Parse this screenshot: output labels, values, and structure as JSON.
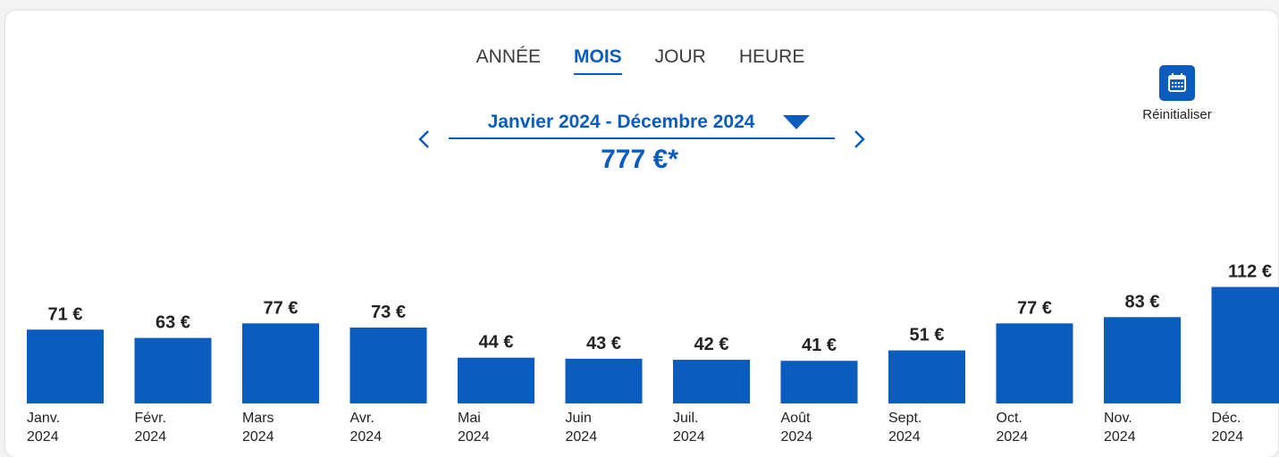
{
  "tabs": [
    {
      "label": "ANNÉE",
      "active": false
    },
    {
      "label": "MOIS",
      "active": true
    },
    {
      "label": "JOUR",
      "active": false
    },
    {
      "label": "HEURE",
      "active": false
    }
  ],
  "period": {
    "label": "Janvier 2024 - Décembre 2024",
    "total": "777 €*"
  },
  "reset": {
    "label": "Réinitialiser",
    "icon": "calendar-icon"
  },
  "colors": {
    "accent": "#0a5cbf",
    "bar": "#0a5cbf",
    "text": "#222222"
  },
  "chart_data": {
    "type": "bar",
    "unit": "€",
    "categories": [
      [
        "Janv.",
        "2024"
      ],
      [
        "Févr.",
        "2024"
      ],
      [
        "Mars",
        "2024"
      ],
      [
        "Avr.",
        "2024"
      ],
      [
        "Mai",
        "2024"
      ],
      [
        "Juin",
        "2024"
      ],
      [
        "Juil.",
        "2024"
      ],
      [
        "Août",
        "2024"
      ],
      [
        "Sept.",
        "2024"
      ],
      [
        "Oct.",
        "2024"
      ],
      [
        "Nov.",
        "2024"
      ],
      [
        "Déc.",
        "2024"
      ]
    ],
    "values": [
      71,
      63,
      77,
      73,
      44,
      43,
      42,
      41,
      51,
      77,
      83,
      112
    ],
    "value_labels": [
      "71 €",
      "63 €",
      "77 €",
      "73 €",
      "44 €",
      "43 €",
      "42 €",
      "41 €",
      "51 €",
      "77 €",
      "83 €",
      "112 €"
    ],
    "title": "",
    "xlabel": "",
    "ylabel": "",
    "grid": false,
    "legend": "none"
  }
}
